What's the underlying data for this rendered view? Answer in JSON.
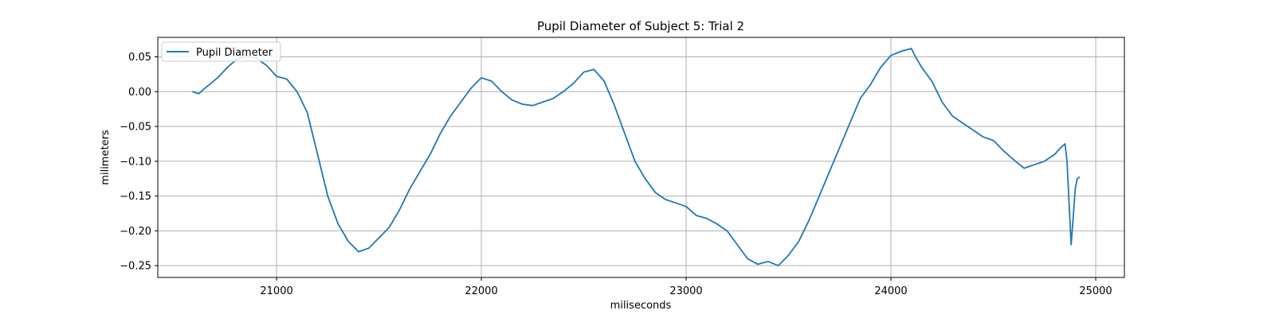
{
  "chart_data": {
    "type": "line",
    "title": "Pupil Diameter of Subject 5: Trial 2",
    "xlabel": "miliseconds",
    "ylabel": "milimeters",
    "xlim": [
      20420,
      25140
    ],
    "ylim": [
      -0.267,
      0.078
    ],
    "xticks": [
      21000,
      22000,
      23000,
      24000,
      25000
    ],
    "xtick_labels": [
      "21000",
      "22000",
      "23000",
      "24000",
      "25000"
    ],
    "yticks": [
      0.05,
      0.0,
      -0.05,
      -0.1,
      -0.15,
      -0.2,
      -0.25
    ],
    "ytick_labels": [
      "0.05",
      "0.00",
      "−0.05",
      "−0.10",
      "−0.15",
      "−0.20",
      "−0.25"
    ],
    "grid": true,
    "legend_position": "upper-left",
    "line_color": "#1f77b4",
    "series": [
      {
        "name": "Pupil Diameter",
        "x": [
          20590,
          20620,
          20650,
          20680,
          20720,
          20760,
          20800,
          20850,
          20900,
          20950,
          21000,
          21050,
          21100,
          21150,
          21200,
          21250,
          21300,
          21350,
          21400,
          21450,
          21500,
          21550,
          21600,
          21650,
          21700,
          21750,
          21800,
          21850,
          21900,
          21950,
          22000,
          22050,
          22100,
          22150,
          22200,
          22250,
          22300,
          22350,
          22400,
          22450,
          22500,
          22550,
          22600,
          22650,
          22700,
          22750,
          22800,
          22850,
          22900,
          22950,
          23000,
          23050,
          23100,
          23150,
          23200,
          23250,
          23300,
          23350,
          23400,
          23450,
          23500,
          23550,
          23600,
          23650,
          23700,
          23750,
          23800,
          23850,
          23900,
          23950,
          24000,
          24050,
          24100,
          24120,
          24150,
          24200,
          24250,
          24300,
          24350,
          24400,
          24450,
          24500,
          24550,
          24600,
          24650,
          24700,
          24750,
          24800,
          24830,
          24850,
          24860,
          24870,
          24880,
          24890,
          24900,
          24910,
          24920
        ],
        "y": [
          0.0,
          -0.003,
          0.005,
          0.012,
          0.022,
          0.035,
          0.045,
          0.052,
          0.048,
          0.038,
          0.022,
          0.018,
          0.0,
          -0.03,
          -0.09,
          -0.15,
          -0.19,
          -0.215,
          -0.23,
          -0.225,
          -0.21,
          -0.195,
          -0.17,
          -0.14,
          -0.115,
          -0.09,
          -0.06,
          -0.035,
          -0.015,
          0.005,
          0.02,
          0.015,
          0.0,
          -0.012,
          -0.018,
          -0.02,
          -0.015,
          -0.01,
          0.0,
          0.012,
          0.028,
          0.032,
          0.015,
          -0.02,
          -0.06,
          -0.1,
          -0.125,
          -0.145,
          -0.155,
          -0.16,
          -0.165,
          -0.178,
          -0.182,
          -0.19,
          -0.2,
          -0.22,
          -0.24,
          -0.248,
          -0.244,
          -0.25,
          -0.235,
          -0.215,
          -0.185,
          -0.15,
          -0.115,
          -0.08,
          -0.045,
          -0.01,
          0.01,
          0.035,
          0.052,
          0.058,
          0.062,
          0.05,
          0.035,
          0.015,
          -0.015,
          -0.035,
          -0.045,
          -0.055,
          -0.065,
          -0.07,
          -0.085,
          -0.098,
          -0.11,
          -0.105,
          -0.1,
          -0.09,
          -0.08,
          -0.075,
          -0.1,
          -0.16,
          -0.22,
          -0.18,
          -0.14,
          -0.125,
          -0.123
        ]
      }
    ]
  }
}
